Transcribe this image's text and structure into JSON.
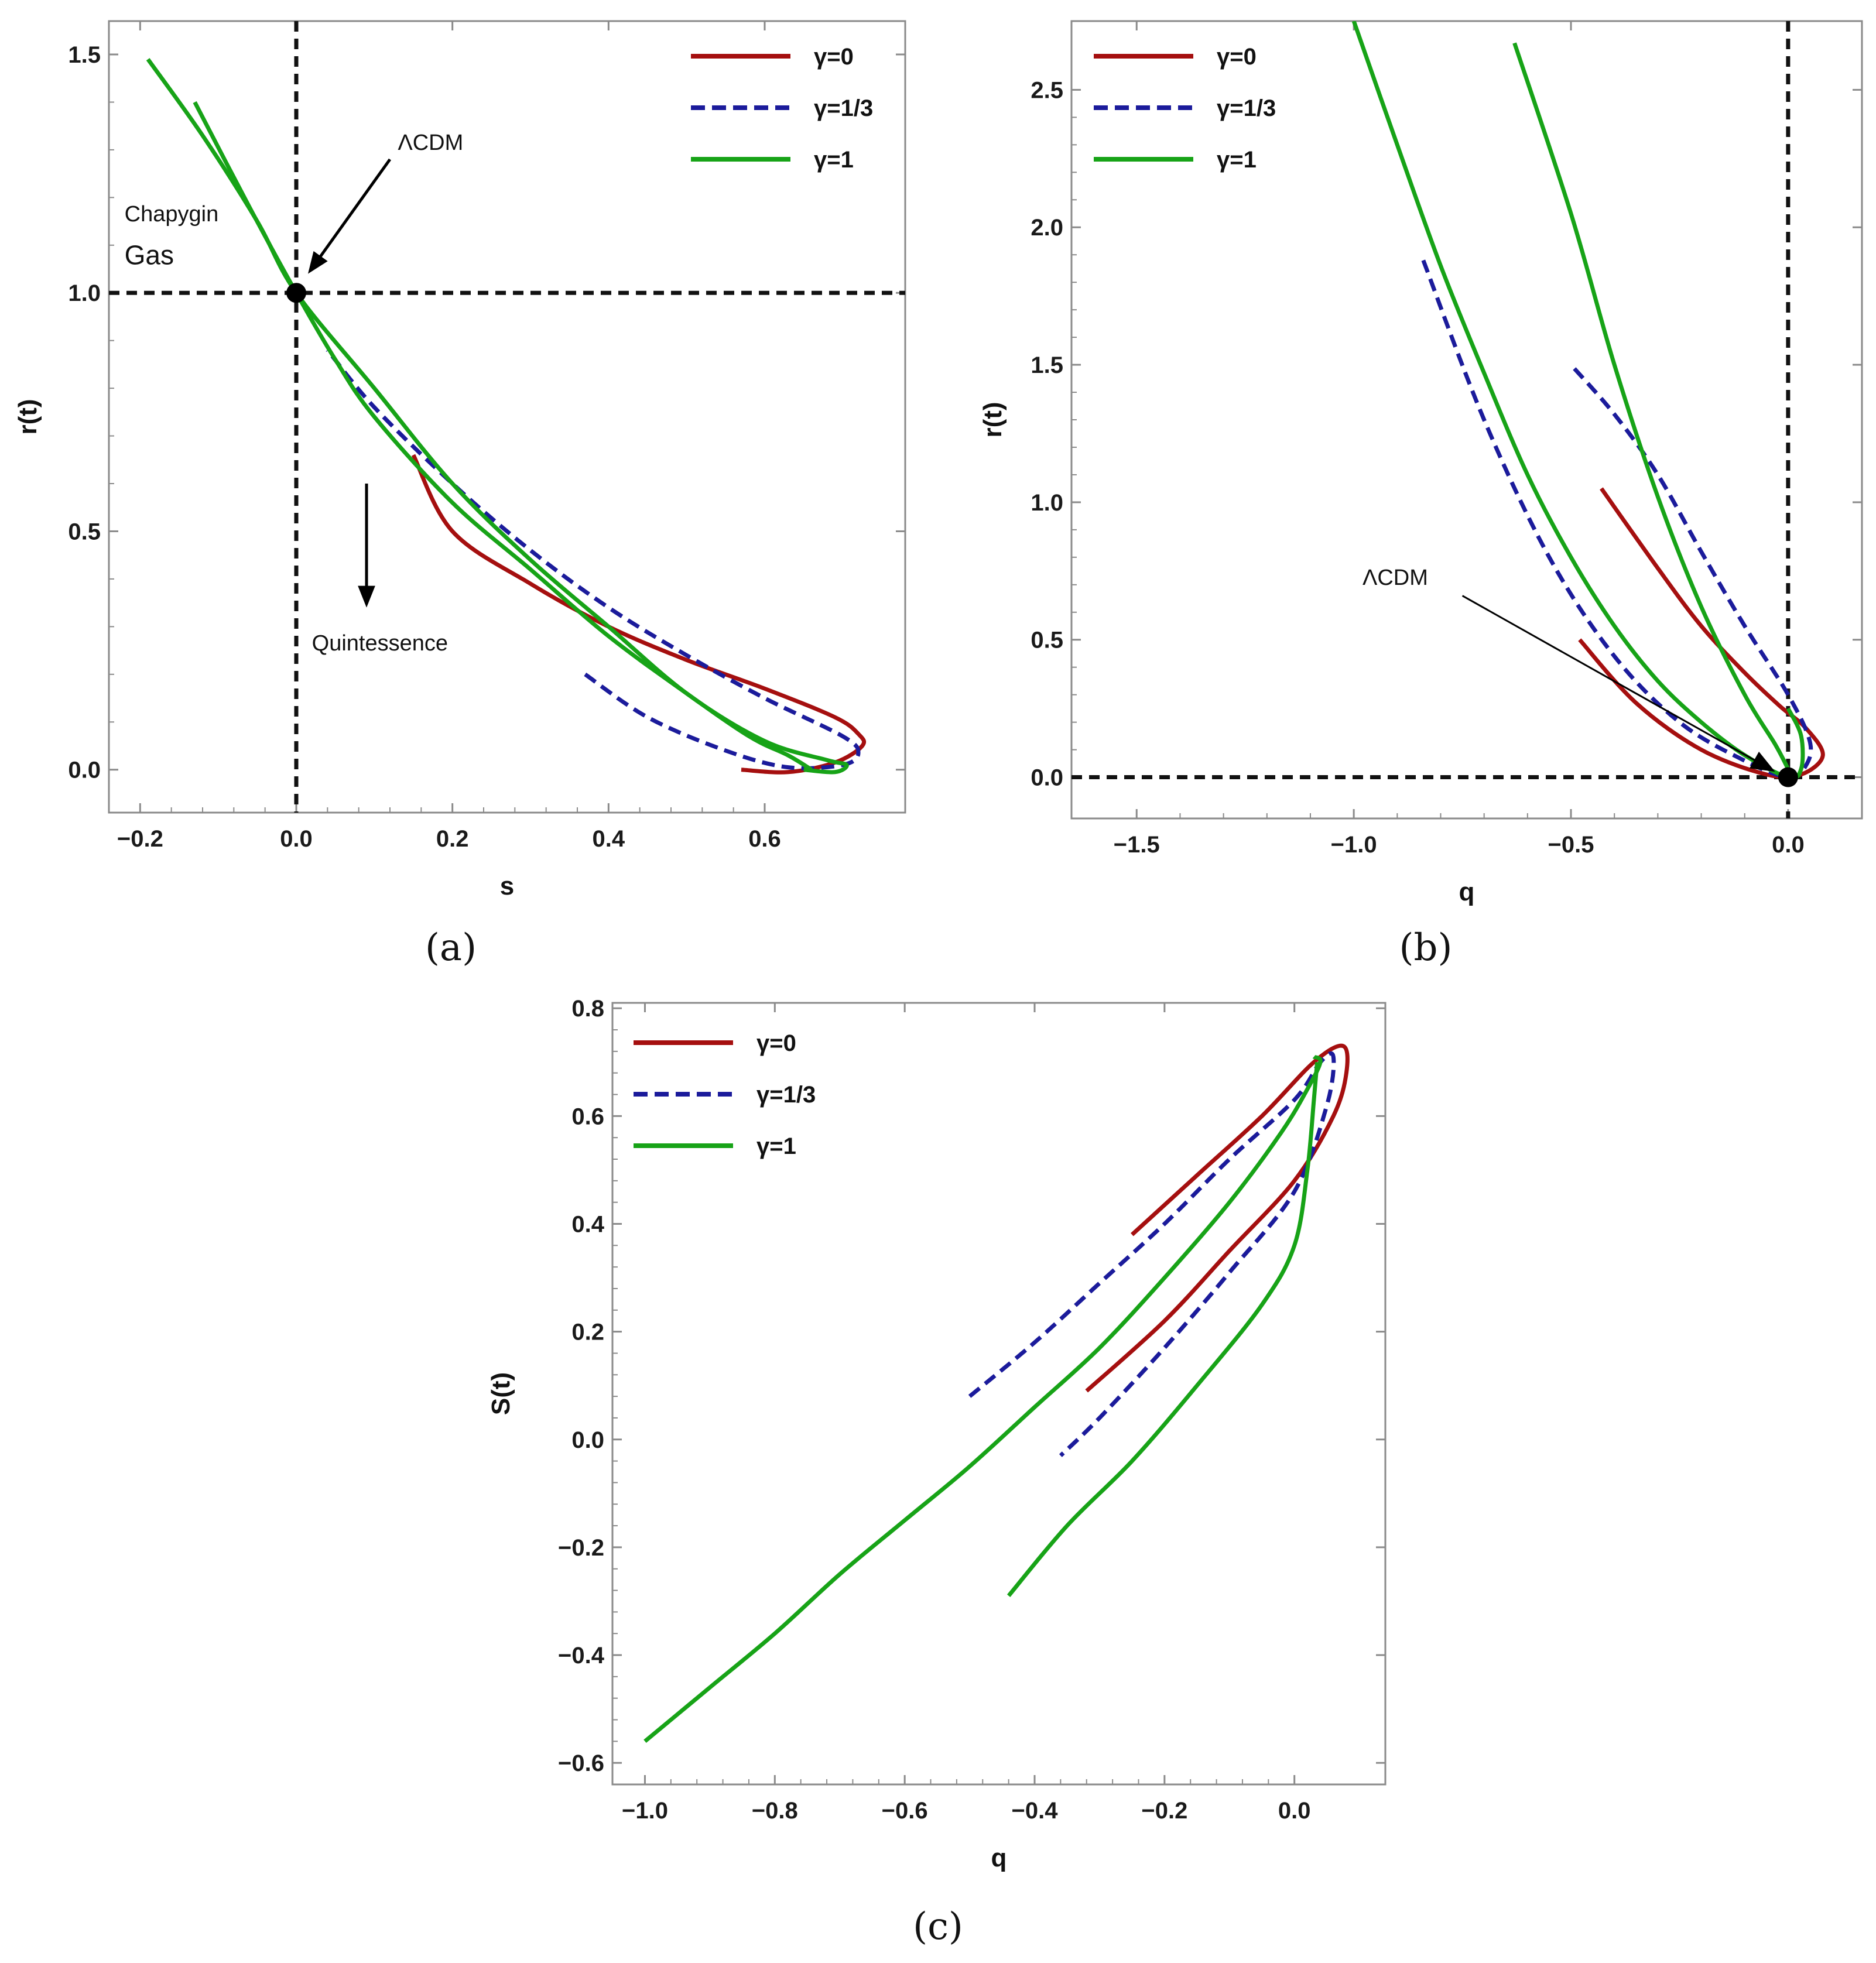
{
  "colors": {
    "g0": "#a50f0f",
    "g13": "#1b1b9b",
    "g1": "#17a317",
    "frame": "#8a8a8a",
    "ref": "#111111"
  },
  "legend": [
    {
      "label": "γ=0",
      "style": "solid",
      "color": "#a50f0f"
    },
    {
      "label": "γ=1/3",
      "style": "dashed",
      "color": "#1b1b9b"
    },
    {
      "label": "γ=1",
      "style": "solid",
      "color": "#17a317"
    }
  ],
  "chart_data": [
    {
      "type": "line",
      "caption": "(a)",
      "xlabel": "s",
      "ylabel": "r(t)",
      "xlim": [
        -0.24,
        0.78
      ],
      "ylim": [
        -0.09,
        1.57
      ],
      "xticks": [
        -0.2,
        0.0,
        0.2,
        0.4,
        0.6
      ],
      "yticks": [
        0.0,
        0.5,
        1.0,
        1.5
      ],
      "xtick_labels": [
        "−0.2",
        "0.0",
        "0.2",
        "0.4",
        "0.6"
      ],
      "ytick_labels": [
        "0.0",
        "0.5",
        "1.0",
        "1.5"
      ],
      "ref_lines": {
        "x": 0.0,
        "y": 1.0
      },
      "point": {
        "x": 0.0,
        "y": 1.0
      },
      "annotations": [
        {
          "text": "ΛCDM",
          "x": 0.13,
          "y": 1.3
        },
        {
          "text": "Chapygin",
          "x": -0.22,
          "y": 1.15
        },
        {
          "text": "Gas",
          "x": -0.22,
          "y": 1.06
        },
        {
          "text": "Quintessence",
          "x": 0.02,
          "y": 0.25
        }
      ],
      "arrows": [
        {
          "from": [
            0.12,
            1.28
          ],
          "to": [
            0.015,
            1.04
          ]
        },
        {
          "from": [
            0.09,
            0.6
          ],
          "to": [
            0.09,
            0.34
          ]
        }
      ],
      "series": [
        {
          "name": "γ=0",
          "style": "solid",
          "color": "#a50f0f",
          "points": [
            [
              0.57,
              0.0
            ],
            [
              0.63,
              -0.005
            ],
            [
              0.69,
              0.015
            ],
            [
              0.725,
              0.05
            ],
            [
              0.72,
              0.075
            ],
            [
              0.69,
              0.11
            ],
            [
              0.6,
              0.17
            ],
            [
              0.5,
              0.23
            ],
            [
              0.4,
              0.3
            ],
            [
              0.3,
              0.39
            ],
            [
              0.2,
              0.5
            ],
            [
              0.15,
              0.66
            ]
          ]
        },
        {
          "name": "γ=1/3",
          "style": "dashed",
          "color": "#1b1b9b",
          "points": [
            [
              0.37,
              0.2
            ],
            [
              0.45,
              0.11
            ],
            [
              0.55,
              0.04
            ],
            [
              0.63,
              0.005
            ],
            [
              0.7,
              0.01
            ],
            [
              0.72,
              0.035
            ],
            [
              0.7,
              0.07
            ],
            [
              0.6,
              0.15
            ],
            [
              0.5,
              0.24
            ],
            [
              0.4,
              0.34
            ],
            [
              0.3,
              0.46
            ],
            [
              0.2,
              0.6
            ],
            [
              0.1,
              0.76
            ],
            [
              0.04,
              0.88
            ]
          ]
        },
        {
          "name": "γ=1 (upper branch)",
          "style": "solid",
          "color": "#17a317",
          "points": [
            [
              -0.19,
              1.49
            ],
            [
              -0.12,
              1.33
            ],
            [
              -0.05,
              1.15
            ],
            [
              0.0,
              1.0
            ],
            [
              0.1,
              0.8
            ],
            [
              0.2,
              0.6
            ],
            [
              0.3,
              0.44
            ],
            [
              0.4,
              0.3
            ],
            [
              0.5,
              0.16
            ],
            [
              0.6,
              0.06
            ],
            [
              0.68,
              0.02
            ],
            [
              0.705,
              0.01
            ],
            [
              0.69,
              -0.005
            ],
            [
              0.65,
              0.0
            ]
          ]
        },
        {
          "name": "γ=1 (lower branch)",
          "style": "solid",
          "color": "#17a317",
          "points": [
            [
              -0.13,
              1.4
            ],
            [
              -0.06,
              1.18
            ],
            [
              0.0,
              1.0
            ],
            [
              0.05,
              0.86
            ],
            [
              0.1,
              0.74
            ],
            [
              0.2,
              0.56
            ],
            [
              0.3,
              0.42
            ],
            [
              0.4,
              0.28
            ],
            [
              0.5,
              0.16
            ],
            [
              0.58,
              0.07
            ],
            [
              0.63,
              0.03
            ],
            [
              0.66,
              0.0
            ]
          ]
        }
      ]
    },
    {
      "type": "line",
      "caption": "(b)",
      "xlabel": "q",
      "ylabel": "r(t)",
      "xlim": [
        -1.65,
        0.17
      ],
      "ylim": [
        -0.15,
        2.75
      ],
      "xticks": [
        -1.5,
        -1.0,
        -0.5,
        0.0
      ],
      "yticks": [
        0.0,
        0.5,
        1.0,
        1.5,
        2.0,
        2.5
      ],
      "xtick_labels": [
        "−1.5",
        "−1.0",
        "−0.5",
        "0.0"
      ],
      "ytick_labels": [
        "0.0",
        "0.5",
        "1.0",
        "1.5",
        "2.0",
        "2.5"
      ],
      "ref_lines": {
        "x": 0.0,
        "y": 0.0
      },
      "point": {
        "x": 0.0,
        "y": 0.0
      },
      "annotations": [
        {
          "text": "ΛCDM",
          "x": -0.98,
          "y": 0.7
        }
      ],
      "arrows": [
        {
          "from": [
            -0.75,
            0.66
          ],
          "to": [
            -0.03,
            0.02
          ]
        }
      ],
      "series": [
        {
          "name": "γ=0",
          "style": "solid",
          "color": "#a50f0f",
          "points": [
            [
              -0.48,
              0.5
            ],
            [
              -0.35,
              0.27
            ],
            [
              -0.2,
              0.1
            ],
            [
              -0.05,
              0.01
            ],
            [
              0.03,
              0.01
            ],
            [
              0.08,
              0.08
            ],
            [
              0.04,
              0.18
            ],
            [
              -0.02,
              0.26
            ],
            [
              -0.1,
              0.38
            ],
            [
              -0.2,
              0.55
            ],
            [
              -0.3,
              0.76
            ],
            [
              -0.43,
              1.05
            ]
          ]
        },
        {
          "name": "γ=1/3",
          "style": "dashed",
          "color": "#1b1b9b",
          "points": [
            [
              -0.84,
              1.88
            ],
            [
              -0.7,
              1.3
            ],
            [
              -0.55,
              0.8
            ],
            [
              -0.4,
              0.44
            ],
            [
              -0.25,
              0.2
            ],
            [
              -0.1,
              0.06
            ],
            [
              0.0,
              0.0
            ],
            [
              0.04,
              0.04
            ],
            [
              0.05,
              0.13
            ],
            [
              0.0,
              0.3
            ],
            [
              -0.1,
              0.55
            ],
            [
              -0.2,
              0.82
            ],
            [
              -0.3,
              1.1
            ],
            [
              -0.4,
              1.32
            ],
            [
              -0.5,
              1.5
            ]
          ]
        },
        {
          "name": "γ=1 (outer branch)",
          "style": "solid",
          "color": "#17a317",
          "points": [
            [
              -1.0,
              2.75
            ],
            [
              -0.9,
              2.3
            ],
            [
              -0.8,
              1.86
            ],
            [
              -0.7,
              1.47
            ],
            [
              -0.6,
              1.1
            ],
            [
              -0.5,
              0.8
            ],
            [
              -0.4,
              0.55
            ],
            [
              -0.3,
              0.35
            ],
            [
              -0.2,
              0.2
            ],
            [
              -0.1,
              0.08
            ],
            [
              0.0,
              0.0
            ],
            [
              0.03,
              0.03
            ],
            [
              0.03,
              0.15
            ],
            [
              0.0,
              0.25
            ]
          ]
        },
        {
          "name": "γ=1 (inner branch)",
          "style": "solid",
          "color": "#17a317",
          "points": [
            [
              -0.63,
              2.67
            ],
            [
              -0.5,
              2.05
            ],
            [
              -0.4,
              1.5
            ],
            [
              -0.3,
              1.02
            ],
            [
              -0.2,
              0.62
            ],
            [
              -0.1,
              0.3
            ],
            [
              -0.03,
              0.12
            ],
            [
              0.0,
              0.03
            ]
          ]
        }
      ]
    },
    {
      "type": "line",
      "caption": "(c)",
      "xlabel": "q",
      "ylabel": "S(t)",
      "xlim": [
        -1.05,
        0.14
      ],
      "ylim": [
        -0.64,
        0.81
      ],
      "xticks": [
        -1.0,
        -0.8,
        -0.6,
        -0.4,
        -0.2,
        0.0
      ],
      "yticks": [
        -0.6,
        -0.4,
        -0.2,
        0.0,
        0.2,
        0.4,
        0.6,
        0.8
      ],
      "xtick_labels": [
        "−1.0",
        "−0.8",
        "−0.6",
        "−0.4",
        "−0.2",
        "0.0"
      ],
      "ytick_labels": [
        "−0.6",
        "−0.4",
        "−0.2",
        "0.0",
        "0.2",
        "0.4",
        "0.6",
        "0.8"
      ],
      "series": [
        {
          "name": "γ=0",
          "style": "solid",
          "color": "#a50f0f",
          "points": [
            [
              -0.25,
              0.38
            ],
            [
              -0.15,
              0.49
            ],
            [
              -0.05,
              0.6
            ],
            [
              0.03,
              0.7
            ],
            [
              0.075,
              0.73
            ],
            [
              0.08,
              0.68
            ],
            [
              0.06,
              0.6
            ],
            [
              0.0,
              0.48
            ],
            [
              -0.1,
              0.35
            ],
            [
              -0.2,
              0.22
            ],
            [
              -0.32,
              0.09
            ]
          ]
        },
        {
          "name": "γ=1/3",
          "style": "dashed",
          "color": "#1b1b9b",
          "points": [
            [
              -0.5,
              0.08
            ],
            [
              -0.4,
              0.18
            ],
            [
              -0.3,
              0.29
            ],
            [
              -0.2,
              0.4
            ],
            [
              -0.1,
              0.52
            ],
            [
              0.0,
              0.63
            ],
            [
              0.04,
              0.7
            ],
            [
              0.06,
              0.71
            ],
            [
              0.05,
              0.62
            ],
            [
              0.0,
              0.46
            ],
            [
              -0.1,
              0.31
            ],
            [
              -0.2,
              0.17
            ],
            [
              -0.3,
              0.04
            ],
            [
              -0.36,
              -0.03
            ]
          ]
        },
        {
          "name": "γ=1 (long branch)",
          "style": "solid",
          "color": "#17a317",
          "points": [
            [
              -1.0,
              -0.56
            ],
            [
              -0.9,
              -0.46
            ],
            [
              -0.8,
              -0.36
            ],
            [
              -0.7,
              -0.25
            ],
            [
              -0.6,
              -0.15
            ],
            [
              -0.5,
              -0.05
            ],
            [
              -0.4,
              0.06
            ],
            [
              -0.3,
              0.17
            ],
            [
              -0.2,
              0.3
            ],
            [
              -0.1,
              0.44
            ],
            [
              -0.02,
              0.57
            ],
            [
              0.02,
              0.65
            ],
            [
              0.04,
              0.7
            ],
            [
              0.03,
              0.71
            ]
          ]
        },
        {
          "name": "γ=1 (short branch)",
          "style": "solid",
          "color": "#17a317",
          "points": [
            [
              -0.44,
              -0.29
            ],
            [
              -0.35,
              -0.16
            ],
            [
              -0.25,
              -0.04
            ],
            [
              -0.15,
              0.1
            ],
            [
              -0.05,
              0.25
            ],
            [
              0.0,
              0.36
            ],
            [
              0.02,
              0.5
            ],
            [
              0.03,
              0.63
            ],
            [
              0.035,
              0.7
            ]
          ]
        }
      ]
    }
  ]
}
